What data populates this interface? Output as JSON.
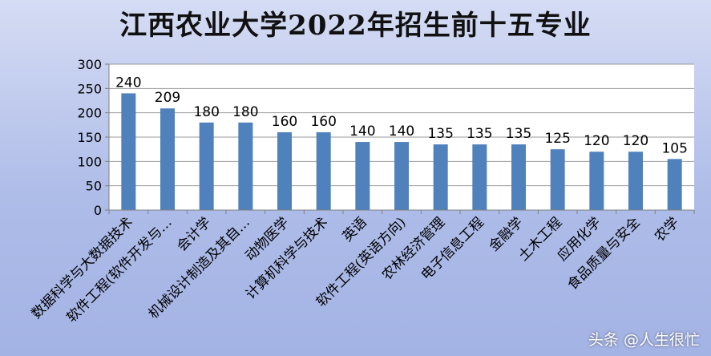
{
  "chart_data": {
    "type": "bar",
    "title": "江西农业大学2022年招生前十五专业",
    "categories": [
      "数据科学与大数据技术",
      "软件工程(软件开发与…",
      "会计学",
      "机械设计制造及其自…",
      "动物医学",
      "计算机科学与技术",
      "英语",
      "软件工程(英语方向)",
      "农林经济管理",
      "电子信息工程",
      "金融学",
      "土木工程",
      "应用化学",
      "食品质量与安全",
      "农学"
    ],
    "values": [
      240,
      209,
      180,
      180,
      160,
      160,
      140,
      140,
      135,
      135,
      135,
      125,
      120,
      120,
      105
    ],
    "ylim": [
      0,
      300
    ],
    "yticks": [
      "0",
      "50",
      "100",
      "150",
      "200",
      "250",
      "300"
    ],
    "grid": true,
    "legend": "none",
    "bar_color": "#4f81bd",
    "plot_background": "#ffffff"
  },
  "watermark": "头条 @人生很忙"
}
